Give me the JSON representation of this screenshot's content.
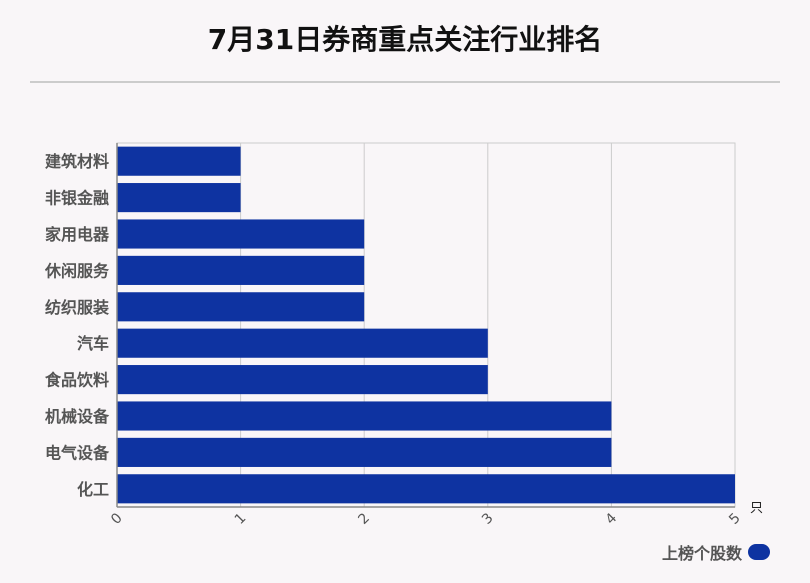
{
  "title": "7月31日券商重点关注行业排名",
  "colors": {
    "bar": "#0e33a1",
    "grid": "#cccccc",
    "axis": "#888888",
    "text": "#555555"
  },
  "chart_data": {
    "type": "bar",
    "orientation": "horizontal",
    "title": "7月31日券商重点关注行业排名",
    "categories": [
      "建筑材料",
      "非银金融",
      "家用电器",
      "休闲服务",
      "纺织服装",
      "汽车",
      "食品饮料",
      "机械设备",
      "电气设备",
      "化工"
    ],
    "series": [
      {
        "name": "上榜个股数",
        "values": [
          1,
          1,
          2,
          2,
          2,
          3,
          3,
          4,
          4,
          5
        ]
      }
    ],
    "xlim": [
      0,
      5
    ],
    "xticks": [
      "0",
      "1",
      "2",
      "3",
      "4",
      "5"
    ],
    "x_unit": "只",
    "grid": true,
    "legend_position": "bottom-right"
  }
}
